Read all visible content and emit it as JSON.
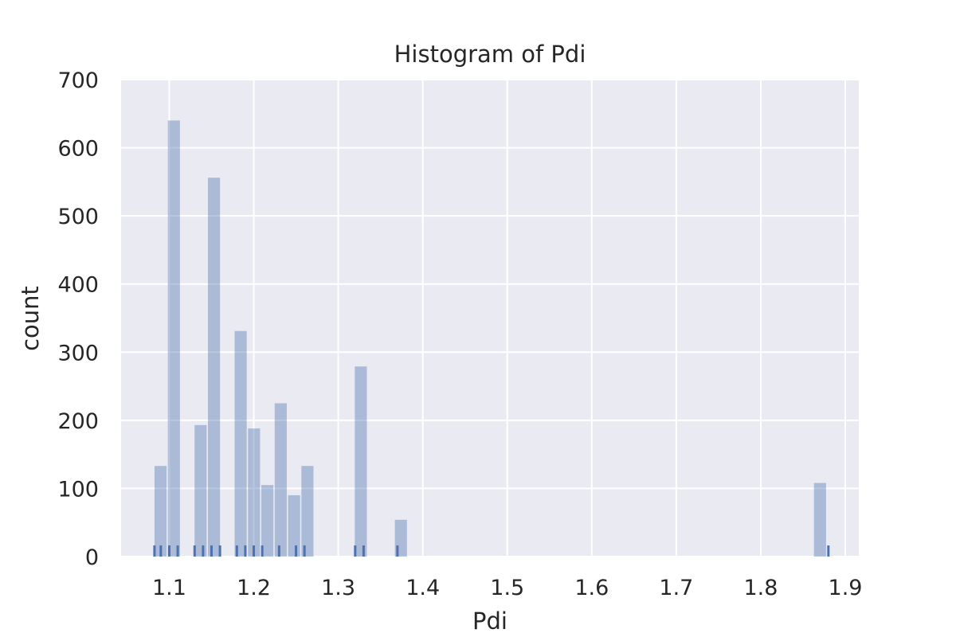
{
  "chart_data": {
    "type": "bar",
    "title": "Histogram of Pdi",
    "xlabel": "Pdi",
    "ylabel": "count",
    "xlim": [
      1.043,
      1.916
    ],
    "ylim": [
      0,
      700
    ],
    "grid": true,
    "xticks": [
      1.1,
      1.2,
      1.3,
      1.4,
      1.5,
      1.6,
      1.7,
      1.8,
      1.9
    ],
    "xtick_labels": [
      "1.1",
      "1.2",
      "1.3",
      "1.4",
      "1.5",
      "1.6",
      "1.7",
      "1.8",
      "1.9"
    ],
    "yticks": [
      0,
      100,
      200,
      300,
      400,
      500,
      600,
      700
    ],
    "ytick_labels": [
      "0",
      "100",
      "200",
      "300",
      "400",
      "500",
      "600",
      "700"
    ],
    "bin_width": 0.0158,
    "bins": [
      {
        "x0": 1.0818,
        "value": 133
      },
      {
        "x0": 1.0976,
        "value": 640
      },
      {
        "x0": 1.1292,
        "value": 193
      },
      {
        "x0": 1.145,
        "value": 556
      },
      {
        "x0": 1.1766,
        "value": 331
      },
      {
        "x0": 1.1924,
        "value": 188
      },
      {
        "x0": 1.2082,
        "value": 105
      },
      {
        "x0": 1.224,
        "value": 225
      },
      {
        "x0": 1.2398,
        "value": 90
      },
      {
        "x0": 1.2556,
        "value": 133
      },
      {
        "x0": 1.3188,
        "value": 279
      },
      {
        "x0": 1.3662,
        "value": 54
      },
      {
        "x0": 1.8622,
        "value": 108
      }
    ],
    "rug": [
      1.0825,
      1.09,
      1.1,
      1.11,
      1.13,
      1.14,
      1.15,
      1.16,
      1.18,
      1.19,
      1.2,
      1.21,
      1.23,
      1.25,
      1.26,
      1.32,
      1.33,
      1.37,
      1.88
    ],
    "colors": {
      "background": "#eaeaf2",
      "grid": "#ffffff",
      "bar": "#4c72b0",
      "bar_opacity": 0.4,
      "rug": "#4c72b0"
    }
  }
}
